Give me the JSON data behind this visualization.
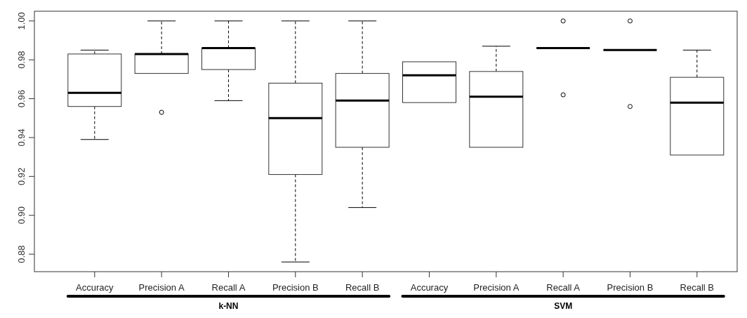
{
  "chart_data": {
    "type": "box",
    "categories": [
      "Accuracy",
      "Precision A",
      "Recall A",
      "Precision B",
      "Recall B",
      "Accuracy",
      "Precision A",
      "Recall A",
      "Precision B",
      "Recall B"
    ],
    "boxes": [
      {
        "low": 0.939,
        "q1": 0.956,
        "median": 0.963,
        "q3": 0.983,
        "high": 0.985
      },
      {
        "low": 0.973,
        "q1": 0.973,
        "median": 0.983,
        "q3": 0.983,
        "high": 1.0,
        "outliers": [
          0.953
        ]
      },
      {
        "low": 0.959,
        "q1": 0.975,
        "median": 0.986,
        "q3": 0.986,
        "high": 1.0
      },
      {
        "low": 0.876,
        "q1": 0.921,
        "median": 0.95,
        "q3": 0.968,
        "high": 1.0
      },
      {
        "low": 0.904,
        "q1": 0.935,
        "median": 0.959,
        "q3": 0.973,
        "high": 1.0
      },
      {
        "low": 0.958,
        "q1": 0.958,
        "median": 0.972,
        "q3": 0.979,
        "high": 0.979
      },
      {
        "low": 0.935,
        "q1": 0.935,
        "median": 0.961,
        "q3": 0.974,
        "high": 0.987
      },
      {
        "low": 0.986,
        "q1": 0.986,
        "median": 0.986,
        "q3": 0.986,
        "high": 0.986,
        "outliers": [
          1.0,
          0.962
        ]
      },
      {
        "low": 0.985,
        "q1": 0.985,
        "median": 0.985,
        "q3": 0.985,
        "high": 0.985,
        "outliers": [
          1.0,
          0.956
        ]
      },
      {
        "low": 0.931,
        "q1": 0.931,
        "median": 0.958,
        "q3": 0.971,
        "high": 0.985
      }
    ],
    "ylim": [
      0.871,
      1.005
    ],
    "yticks": [
      {
        "value": 0.88,
        "label": "0.88"
      },
      {
        "value": 0.9,
        "label": "0.90"
      },
      {
        "value": 0.92,
        "label": "0.92"
      },
      {
        "value": 0.94,
        "label": "0.94"
      },
      {
        "value": 0.96,
        "label": "0.96"
      },
      {
        "value": 0.98,
        "label": "0.98"
      },
      {
        "value": 1.0,
        "label": "1.00"
      }
    ],
    "annotations": [
      "k-NN",
      "SVM"
    ]
  }
}
